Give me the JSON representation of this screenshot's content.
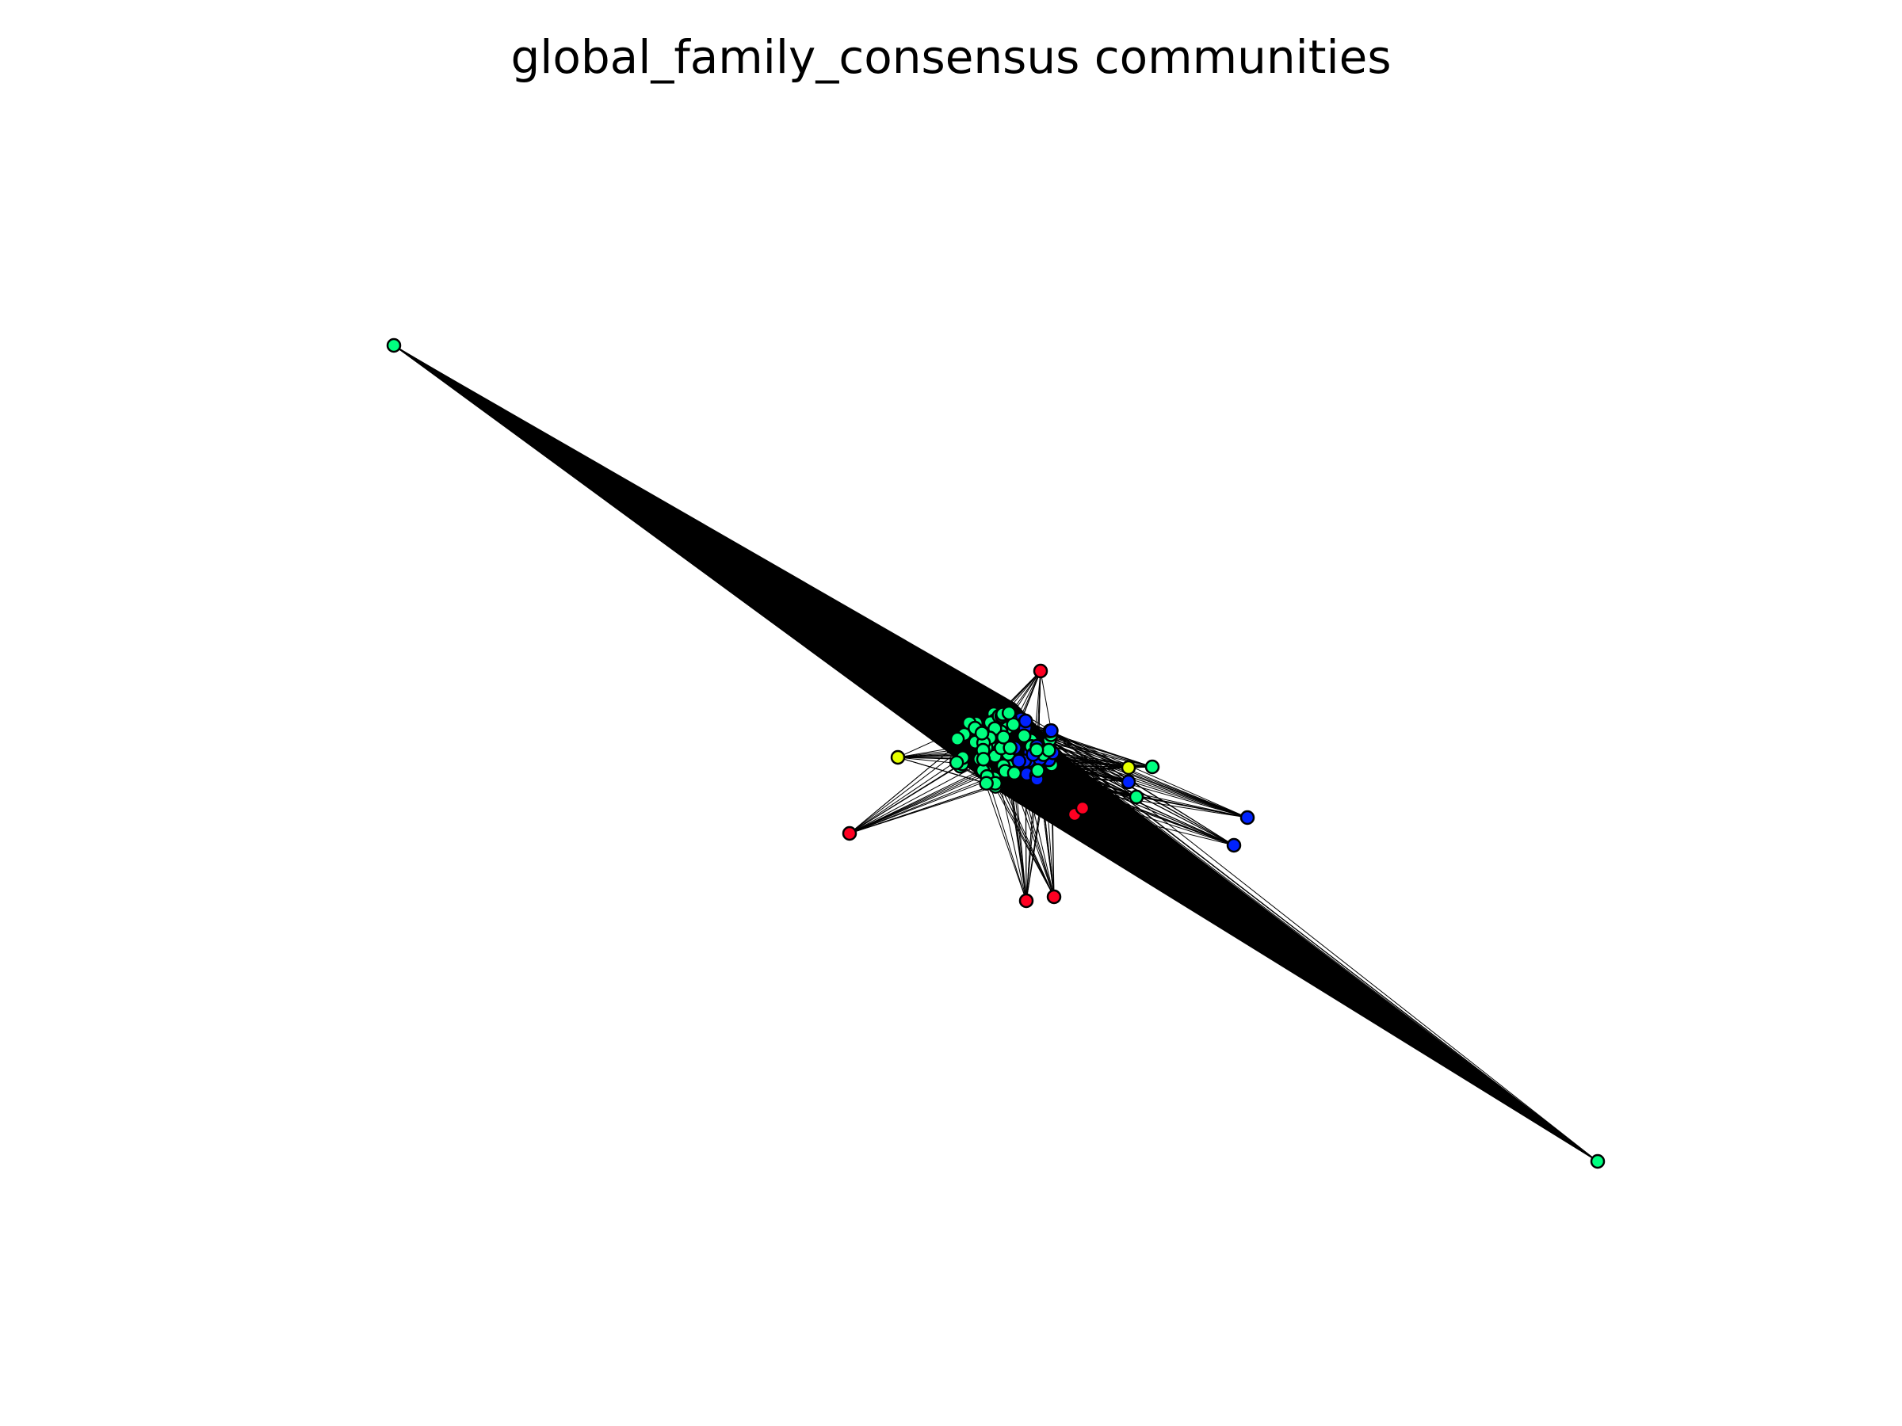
{
  "figure": {
    "title": "global_family_consensus communities"
  },
  "palette": {
    "background": "#ffffff",
    "edge": "#000000",
    "node_outline": "#000000",
    "community_colors": {
      "red": "#ff0022",
      "yellow": "#e5ff00",
      "green": "#00ff80",
      "blue": "#0022ff"
    }
  },
  "graph": {
    "type": "network",
    "layout": "force-directed",
    "node_shape": "circle",
    "edges_drawn_as": "thin black lines (dense, forming a solid black spindle between the two outlying green nodes)",
    "communities_shown": [
      "red",
      "yellow",
      "green",
      "blue"
    ],
    "outlier_nodes": [
      {
        "name": "green outlier (upper-left)",
        "community": "green"
      },
      {
        "name": "green outlier (lower-right)",
        "community": "green"
      },
      {
        "name": "red node (top)",
        "community": "red"
      },
      {
        "name": "red node (left)",
        "community": "red"
      },
      {
        "name": "red node (bottom-left)",
        "community": "red"
      },
      {
        "name": "red node (bottom-right)",
        "community": "red"
      },
      {
        "name": "red pair (center)",
        "community": "red"
      },
      {
        "name": "yellow node (left)",
        "community": "yellow"
      },
      {
        "name": "yellow node (right)",
        "community": "yellow"
      },
      {
        "name": "green node (right)",
        "community": "green"
      },
      {
        "name": "blue nodes (far right)",
        "community": "blue"
      }
    ]
  }
}
